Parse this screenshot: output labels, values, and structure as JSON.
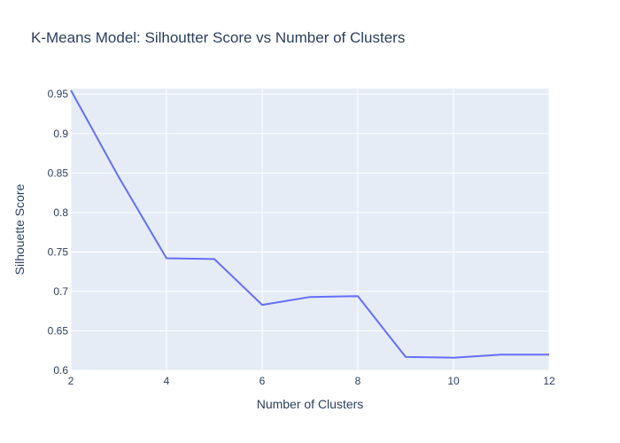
{
  "chart_data": {
    "type": "line",
    "title": "K-Means Model: Silhoutter Score vs Number of Clusters",
    "xlabel": "Number of Clusters",
    "ylabel": "Silhouette Score",
    "xlim": [
      2,
      12
    ],
    "ylim": [
      0.6,
      0.957
    ],
    "x_ticks": [
      2,
      4,
      6,
      8,
      10,
      12
    ],
    "y_ticks": [
      0.6,
      0.65,
      0.7,
      0.75,
      0.8,
      0.85,
      0.9,
      0.95
    ],
    "x_tick_labels": [
      "2",
      "4",
      "6",
      "8",
      "10",
      "12"
    ],
    "y_tick_labels": [
      "0.6",
      "0.65",
      "0.7",
      "0.75",
      "0.8",
      "0.85",
      "0.9",
      "0.95"
    ],
    "grid": true,
    "series": [
      {
        "x": [
          2,
          3,
          4,
          5,
          6,
          7,
          8,
          9,
          10,
          11,
          12
        ],
        "values": [
          0.955,
          0.845,
          0.742,
          0.741,
          0.683,
          0.693,
          0.694,
          0.617,
          0.616,
          0.62,
          0.62
        ],
        "color": "#636efa"
      }
    ],
    "plot_background": "#e5ecf6",
    "grid_color": "#ffffff"
  }
}
